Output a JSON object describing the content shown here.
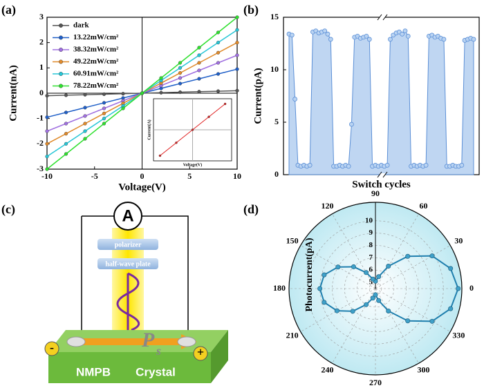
{
  "panel_labels": [
    "(a)",
    "(b)",
    "(c)",
    "(d)"
  ],
  "chart_data": [
    {
      "type": "line",
      "x_label": "Voltage(V)",
      "y_label": "Current(nA)",
      "legend": "upper left",
      "x": [
        -10,
        -8,
        -6,
        -4,
        -2,
        0,
        2,
        4,
        6,
        8,
        10
      ],
      "xlim": [
        -10,
        10
      ],
      "xticks": [
        -10,
        -5,
        0,
        5,
        10
      ],
      "ylim": [
        -3,
        3
      ],
      "yticks": [
        -3,
        -2,
        -1,
        0,
        1,
        2,
        3
      ],
      "series": [
        {
          "name": "dark",
          "color": "#555555",
          "values": [
            -0.1,
            -0.08,
            -0.06,
            -0.04,
            -0.02,
            0,
            0.02,
            0.04,
            0.06,
            0.08,
            0.1
          ]
        },
        {
          "name": "13.22mW/cm²",
          "color": "#1f5fc8",
          "values": [
            -0.95,
            -0.76,
            -0.57,
            -0.38,
            -0.19,
            0,
            0.19,
            0.38,
            0.57,
            0.76,
            0.95
          ]
        },
        {
          "name": "38.32mW/cm²",
          "color": "#a070e0",
          "values": [
            -1.5,
            -1.2,
            -0.9,
            -0.6,
            -0.3,
            0,
            0.3,
            0.6,
            0.9,
            1.2,
            1.5
          ]
        },
        {
          "name": "49.22mW/cm²",
          "color": "#e08a2a",
          "values": [
            -2,
            -1.6,
            -1.2,
            -0.8,
            -0.4,
            0,
            0.4,
            0.8,
            1.2,
            1.6,
            2
          ]
        },
        {
          "name": "60.91mW/cm²",
          "color": "#26c6d6",
          "values": [
            -2.5,
            -2,
            -1.5,
            -1,
            -0.5,
            0,
            0.5,
            1,
            1.5,
            2,
            2.5
          ]
        },
        {
          "name": "78.22mW/cm²",
          "color": "#2ee02e",
          "values": [
            -3,
            -2.4,
            -1.8,
            -1.2,
            -0.6,
            0,
            0.6,
            1.2,
            1.8,
            2.4,
            3
          ]
        }
      ]
    },
    {
      "type": "line",
      "x_label": "Voltage(V)",
      "y_label": "Current(A)",
      "x": [
        -10,
        -5,
        0,
        5,
        10
      ],
      "xlim": [
        -12,
        12
      ],
      "ylim": [
        -1.2,
        1.2
      ],
      "series": [
        {
          "color": "#e02020",
          "values": [
            -1,
            -0.5,
            0,
            0.5,
            1
          ]
        }
      ]
    },
    {
      "type": "area",
      "x_label": "Switch cycles",
      "y_label": "Current(pA)",
      "color": "#5b8fd6",
      "ylim": [
        0,
        15
      ],
      "yticks": [
        0,
        5,
        10,
        15
      ],
      "categories": [
        null,
        null,
        null,
        null,
        null,
        null,
        null,
        null,
        null,
        null,
        null,
        null,
        null,
        null,
        null,
        null,
        null,
        null,
        null,
        null,
        null,
        null,
        null,
        null,
        null,
        null,
        null,
        null,
        null,
        null,
        null,
        null,
        null,
        null,
        null,
        null,
        null,
        null,
        null,
        null,
        null,
        null,
        null,
        null,
        null,
        null,
        null,
        null,
        null,
        null,
        null,
        null,
        null,
        null,
        null,
        null,
        null,
        null,
        null,
        null,
        null,
        null,
        null
      ],
      "values": [
        13.4,
        13.3,
        7.2,
        0.9,
        0.8,
        0.9,
        0.8,
        0.9,
        13.6,
        13.7,
        13.5,
        13.6,
        13.7,
        13.4,
        12.9,
        0.8,
        0.8,
        0.9,
        0.8,
        0.9,
        0.8,
        4.8,
        13.1,
        13.2,
        13.0,
        13.1,
        13.2,
        12.9,
        0.8,
        0.9,
        0.8,
        0.9,
        0.8,
        0.9,
        12.9,
        13.3,
        13.5,
        13.6,
        13.4,
        13.7,
        13.2,
        0.8,
        0.9,
        0.8,
        0.9,
        0.8,
        0.9,
        13.2,
        13.3,
        13.1,
        13.2,
        13.0,
        12.9,
        0.8,
        0.8,
        0.9,
        0.8,
        0.8,
        0.9,
        12.8,
        12.9,
        13.0,
        12.9
      ]
    },
    {
      "type": "polar",
      "r_label": "Photocurrent(pA)",
      "color": "#1f7fae",
      "theta": [
        0,
        15,
        30,
        45,
        60,
        75,
        90,
        105,
        120,
        135,
        150,
        165,
        180,
        195,
        210,
        225,
        240,
        255,
        270,
        285,
        300,
        315,
        330,
        345
      ],
      "thetaticks": [
        0,
        30,
        60,
        90,
        120,
        150,
        180,
        210,
        240,
        270,
        300,
        330
      ],
      "rlim": [
        4.5,
        11.5
      ],
      "rticks": [
        5,
        6,
        7,
        8,
        9,
        10
      ],
      "values": [
        11.2,
        10.8,
        9.8,
        8.2,
        6.6,
        5.5,
        5.1,
        5.3,
        6.0,
        7.0,
        8.0,
        8.8,
        9.0,
        8.8,
        8.1,
        7.1,
        6.0,
        5.3,
        5.0,
        5.5,
        6.6,
        8.2,
        9.8,
        10.8
      ]
    }
  ],
  "diagram": {
    "ammeter": "A",
    "polarizer": "polarizer",
    "half_wave_plate": "half-wave plate",
    "polarization_symbol": "P",
    "polarization_subscript": "s",
    "crystal_name": "NMPB",
    "crystal_word": "Crystal",
    "negative": "-",
    "positive": "+"
  }
}
